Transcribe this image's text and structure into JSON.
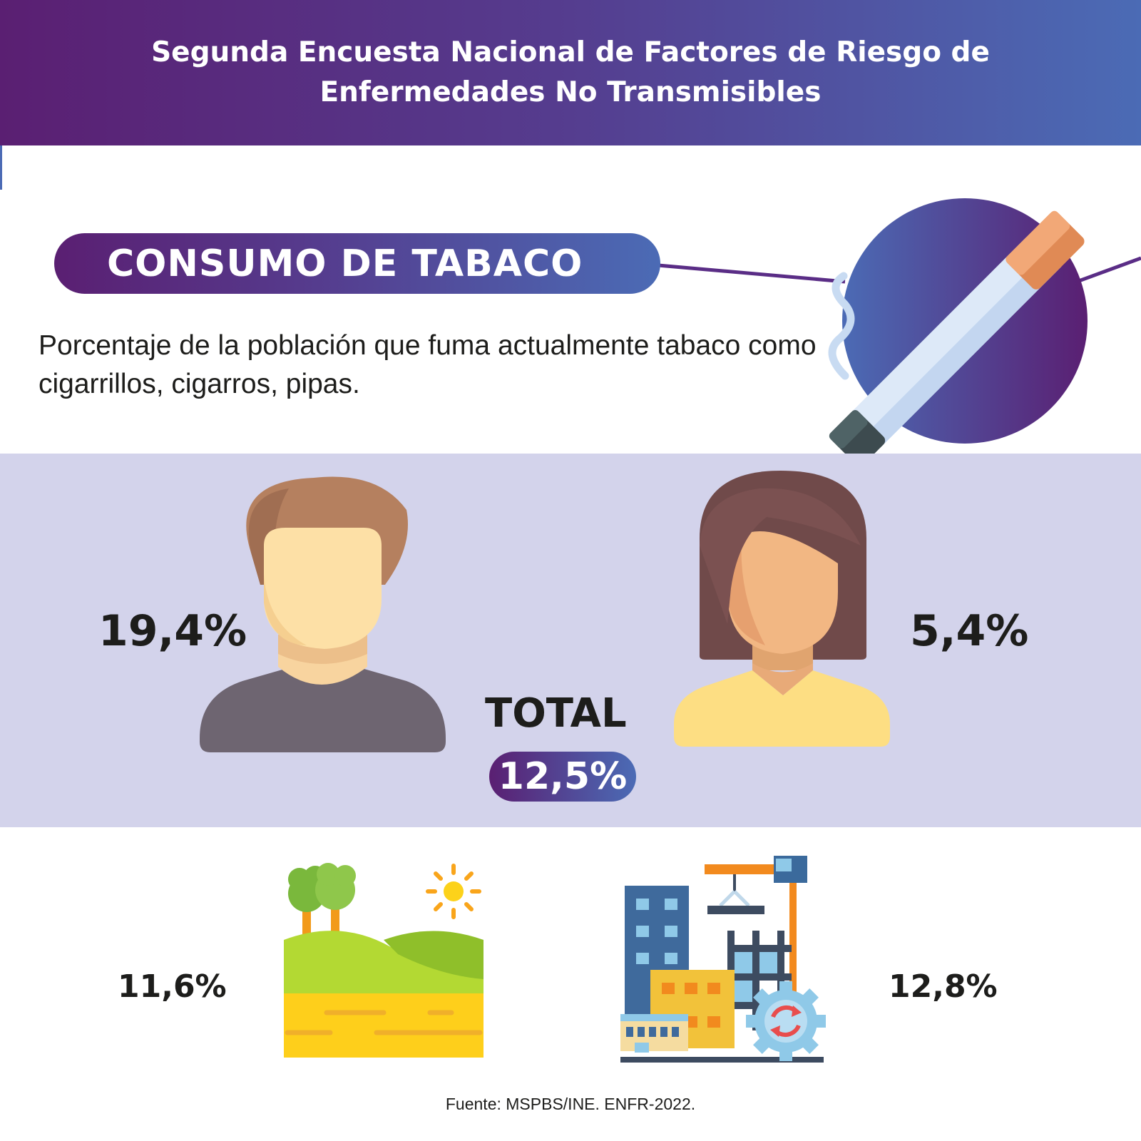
{
  "header": {
    "title": "Segunda Encuesta Nacional de Factores de Riesgo de Enfermedades No Transmisibles"
  },
  "section": {
    "title": "CONSUMO DE TABACO",
    "description": "Porcentaje de la población que fuma actualmente tabaco como cigarrillos, cigarros, pipas."
  },
  "sex": {
    "men": {
      "value": "19,4%"
    },
    "women": {
      "value": "5,4%"
    }
  },
  "total": {
    "label": "TOTAL",
    "value": "12,5%"
  },
  "area": {
    "rural": {
      "value": "11,6%"
    },
    "urban": {
      "value": "12,8%"
    }
  },
  "source": "Fuente: MSPBS/INE. ENFR-2022.",
  "icons": [
    "cigarette-icon",
    "man-icon",
    "woman-icon",
    "rural-landscape-icon",
    "urban-city-icon"
  ],
  "colors": {
    "brand_purple": "#5a1f72",
    "brand_blue": "#4b6bb5",
    "band_background": "#d3d3eb"
  }
}
